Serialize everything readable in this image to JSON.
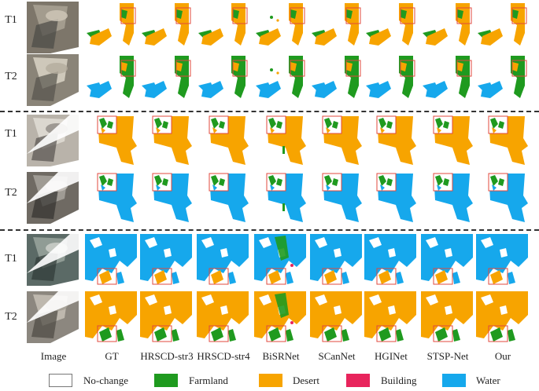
{
  "row_labels": [
    "T1",
    "T2",
    "T1",
    "T2",
    "T1",
    "T2"
  ],
  "column_labels": [
    "Image",
    "GT",
    "HRSCD-str3",
    "HRSCD-str4",
    "BiSRNet",
    "SCanNet",
    "HGINet",
    "STSP-Net",
    "Our"
  ],
  "legend": [
    {
      "label": "No-change",
      "color": "#ffffff"
    },
    {
      "label": "Farmland",
      "color": "#1f9a1f"
    },
    {
      "label": "Desert",
      "color": "#f7a400"
    },
    {
      "label": "Building",
      "color": "#e8245c"
    },
    {
      "label": "Water",
      "color": "#16a8ec"
    }
  ],
  "colors": {
    "farmland": "#1f9a1f",
    "desert": "#f7a400",
    "building": "#e8245c",
    "water": "#16a8ec",
    "highlight_box": "#e0483d",
    "divider": "#333333"
  }
}
